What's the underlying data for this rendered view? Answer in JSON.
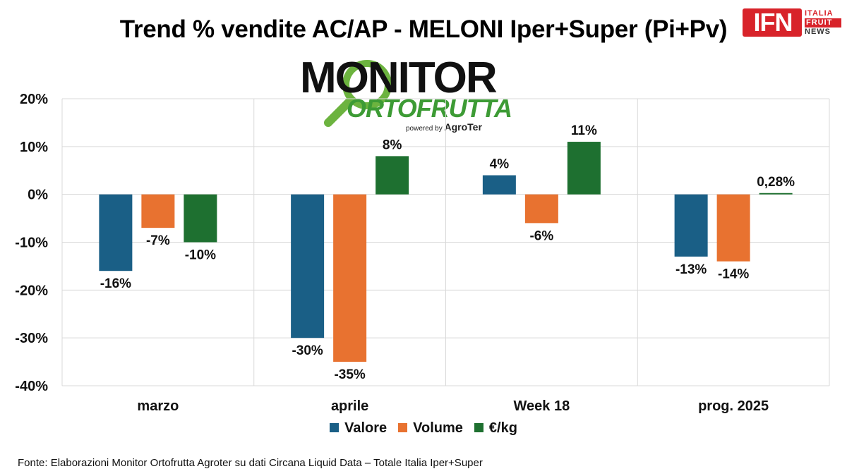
{
  "title": "Trend % vendite AC/AP - MELONI Iper+Super (Pi+Pv)",
  "logo": {
    "main": "MONITOR",
    "sub": "ORTOFRUTTA",
    "powered_prefix": "powered by",
    "powered_brand": "AgroTer"
  },
  "brand_badge": {
    "short": "IFN",
    "line1": "ITALIA",
    "line2": "FRUIT",
    "line3": "NEWS",
    "color": "#d8232a"
  },
  "chart_data": {
    "type": "bar",
    "categories": [
      "marzo",
      "aprile",
      "Week 18",
      "prog. 2025"
    ],
    "series": [
      {
        "name": "Valore",
        "color": "#1a5f86",
        "values": [
          -16,
          -30,
          4,
          -13
        ],
        "labels": [
          "-16%",
          "-30%",
          "4%",
          "-13%"
        ]
      },
      {
        "name": "Volume",
        "color": "#e87230",
        "values": [
          -7,
          -35,
          -6,
          -14
        ],
        "labels": [
          "-7%",
          "-35%",
          "-6%",
          "-14%"
        ]
      },
      {
        "name": "€/kg",
        "color": "#1e7030",
        "values": [
          -10,
          8,
          11,
          0.28
        ],
        "labels": [
          "-10%",
          "8%",
          "11%",
          "0,28%"
        ]
      }
    ],
    "ylim": [
      -40,
      20
    ],
    "yticks": [
      20,
      10,
      0,
      -10,
      -20,
      -30,
      -40
    ],
    "ytick_labels": [
      "20%",
      "10%",
      "0%",
      "-10%",
      "-20%",
      "-30%",
      "-40%"
    ],
    "grid": true,
    "legend": "bottom"
  },
  "source": "Fonte: Elaborazioni Monitor Ortofrutta Agroter su dati Circana Liquid Data – Totale Italia Iper+Super"
}
